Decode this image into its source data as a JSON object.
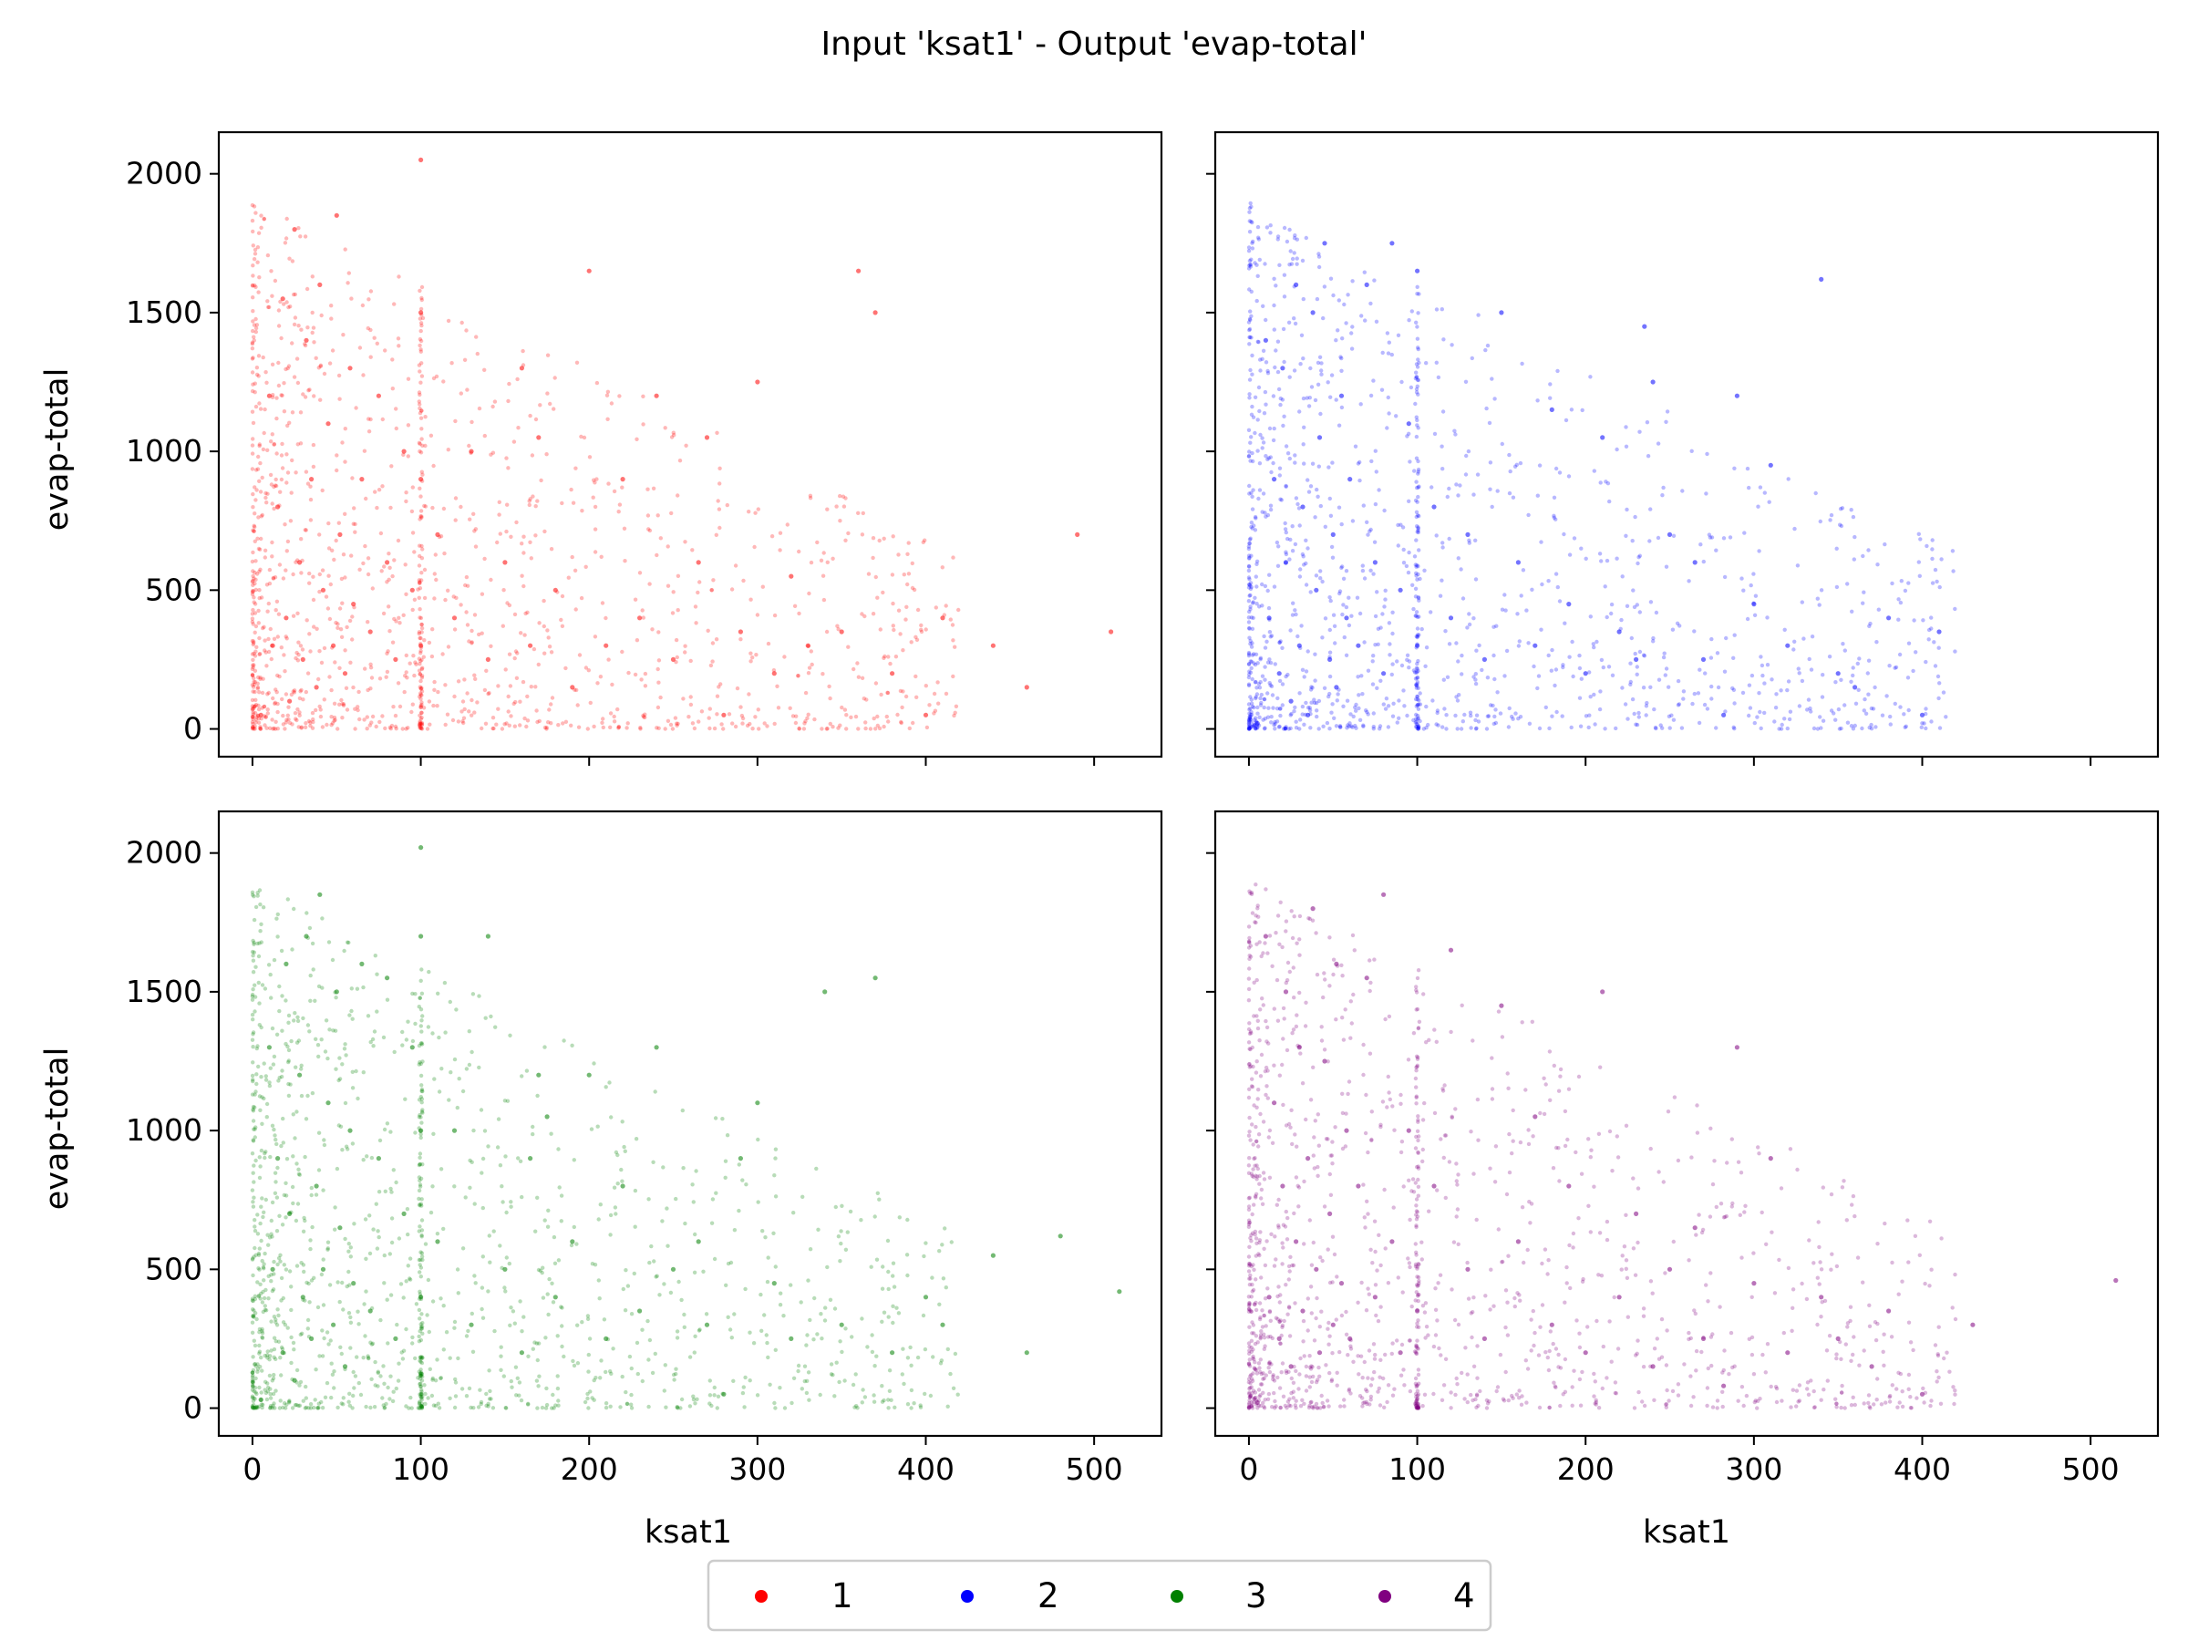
{
  "chart_data": {
    "type": "scatter",
    "title": "Input 'ksat1' - Output 'evap-total'",
    "subtitle": "",
    "xlabel": "ksat1",
    "ylabel": "evap-total",
    "xlim": [
      -20,
      540
    ],
    "ylim": [
      -100,
      2150
    ],
    "xticks": [
      0,
      100,
      200,
      300,
      400,
      500
    ],
    "yticks": [
      0,
      500,
      1000,
      1500,
      2000
    ],
    "grid": false,
    "legend": {
      "placement": "bottom-center",
      "entries": [
        {
          "label": "1",
          "color": "#ff0000"
        },
        {
          "label": "2",
          "color": "#0000ff"
        },
        {
          "label": "3",
          "color": "#008000"
        },
        {
          "label": "4",
          "color": "#800080"
        }
      ]
    },
    "panels": [
      {
        "series": "1",
        "color": "#ff0000",
        "points": [
          [
            5,
            50
          ],
          [
            10,
            1200
          ],
          [
            12,
            300
          ],
          [
            15,
            800
          ],
          [
            18,
            1550
          ],
          [
            20,
            400
          ],
          [
            22,
            100
          ],
          [
            25,
            1800
          ],
          [
            28,
            600
          ],
          [
            30,
            250
          ],
          [
            32,
            1400
          ],
          [
            35,
            900
          ],
          [
            38,
            150
          ],
          [
            40,
            1600
          ],
          [
            42,
            500
          ],
          [
            45,
            1100
          ],
          [
            48,
            300
          ],
          [
            50,
            1850
          ],
          [
            52,
            700
          ],
          [
            55,
            200
          ],
          [
            58,
            1300
          ],
          [
            60,
            450
          ],
          [
            65,
            900
          ],
          [
            70,
            350
          ],
          [
            75,
            1200
          ],
          [
            80,
            600
          ],
          [
            85,
            250
          ],
          [
            90,
            1000
          ],
          [
            95,
            500
          ],
          [
            100,
            2050
          ],
          [
            100,
            1500
          ],
          [
            100,
            900
          ],
          [
            100,
            300
          ],
          [
            110,
            700
          ],
          [
            120,
            400
          ],
          [
            130,
            1000
          ],
          [
            140,
            250
          ],
          [
            150,
            600
          ],
          [
            160,
            1300
          ],
          [
            165,
            300
          ],
          [
            170,
            1050
          ],
          [
            180,
            500
          ],
          [
            190,
            150
          ],
          [
            200,
            1650
          ],
          [
            210,
            300
          ],
          [
            220,
            900
          ],
          [
            230,
            400
          ],
          [
            240,
            1200
          ],
          [
            250,
            250
          ],
          [
            265,
            600
          ],
          [
            270,
            1050
          ],
          [
            280,
            50
          ],
          [
            290,
            350
          ],
          [
            300,
            1250
          ],
          [
            310,
            200
          ],
          [
            320,
            550
          ],
          [
            330,
            300
          ],
          [
            350,
            350
          ],
          [
            360,
            1650
          ],
          [
            370,
            1500
          ],
          [
            380,
            200
          ],
          [
            400,
            50
          ],
          [
            410,
            400
          ],
          [
            440,
            300
          ],
          [
            460,
            150
          ],
          [
            490,
            700
          ],
          [
            510,
            350
          ]
        ]
      },
      {
        "series": "2",
        "color": "#0000ff",
        "points": [
          [
            5,
            20
          ],
          [
            10,
            1400
          ],
          [
            12,
            400
          ],
          [
            15,
            900
          ],
          [
            18,
            200
          ],
          [
            20,
            1300
          ],
          [
            22,
            600
          ],
          [
            25,
            100
          ],
          [
            28,
            1600
          ],
          [
            30,
            300
          ],
          [
            32,
            800
          ],
          [
            35,
            50
          ],
          [
            38,
            1500
          ],
          [
            40,
            500
          ],
          [
            42,
            1050
          ],
          [
            45,
            1750
          ],
          [
            48,
            250
          ],
          [
            50,
            700
          ],
          [
            52,
            150
          ],
          [
            55,
            1200
          ],
          [
            58,
            400
          ],
          [
            60,
            900
          ],
          [
            65,
            300
          ],
          [
            70,
            1600
          ],
          [
            75,
            600
          ],
          [
            80,
            200
          ],
          [
            85,
            1750
          ],
          [
            90,
            500
          ],
          [
            95,
            1100
          ],
          [
            100,
            1650
          ],
          [
            100,
            300
          ],
          [
            110,
            800
          ],
          [
            120,
            400
          ],
          [
            130,
            700
          ],
          [
            140,
            250
          ],
          [
            150,
            1500
          ],
          [
            160,
            600
          ],
          [
            170,
            300
          ],
          [
            180,
            1150
          ],
          [
            190,
            450
          ],
          [
            200,
            200
          ],
          [
            210,
            1050
          ],
          [
            220,
            350
          ],
          [
            230,
            250
          ],
          [
            235,
            1450
          ],
          [
            240,
            1250
          ],
          [
            250,
            700
          ],
          [
            265,
            600
          ],
          [
            270,
            250
          ],
          [
            282,
            50
          ],
          [
            290,
            1200
          ],
          [
            300,
            450
          ],
          [
            310,
            950
          ],
          [
            320,
            300
          ],
          [
            340,
            1620
          ],
          [
            350,
            200
          ],
          [
            360,
            150
          ],
          [
            380,
            400
          ],
          [
            400,
            50
          ],
          [
            410,
            350
          ]
        ]
      },
      {
        "series": "3",
        "color": "#008000",
        "points": [
          [
            5,
            30
          ],
          [
            10,
            1300
          ],
          [
            12,
            500
          ],
          [
            15,
            900
          ],
          [
            18,
            200
          ],
          [
            20,
            1600
          ],
          [
            22,
            700
          ],
          [
            25,
            100
          ],
          [
            28,
            1200
          ],
          [
            30,
            400
          ],
          [
            32,
            1700
          ],
          [
            35,
            250
          ],
          [
            38,
            800
          ],
          [
            40,
            1850
          ],
          [
            42,
            500
          ],
          [
            45,
            1100
          ],
          [
            48,
            300
          ],
          [
            50,
            1500
          ],
          [
            52,
            650
          ],
          [
            55,
            150
          ],
          [
            58,
            1000
          ],
          [
            60,
            450
          ],
          [
            65,
            1600
          ],
          [
            70,
            350
          ],
          [
            75,
            900
          ],
          [
            80,
            1550
          ],
          [
            85,
            250
          ],
          [
            90,
            700
          ],
          [
            95,
            1300
          ],
          [
            100,
            2020
          ],
          [
            100,
            1700
          ],
          [
            100,
            1000
          ],
          [
            100,
            400
          ],
          [
            110,
            600
          ],
          [
            120,
            1000
          ],
          [
            130,
            300
          ],
          [
            140,
            1700
          ],
          [
            150,
            500
          ],
          [
            160,
            200
          ],
          [
            165,
            900
          ],
          [
            170,
            1200
          ],
          [
            175,
            1050
          ],
          [
            180,
            400
          ],
          [
            190,
            600
          ],
          [
            200,
            1200
          ],
          [
            210,
            250
          ],
          [
            220,
            800
          ],
          [
            230,
            350
          ],
          [
            240,
            1300
          ],
          [
            250,
            500
          ],
          [
            265,
            600
          ],
          [
            270,
            300
          ],
          [
            280,
            50
          ],
          [
            290,
            900
          ],
          [
            300,
            1100
          ],
          [
            310,
            450
          ],
          [
            320,
            250
          ],
          [
            340,
            1500
          ],
          [
            350,
            300
          ],
          [
            370,
            1550
          ],
          [
            380,
            200
          ],
          [
            400,
            400
          ],
          [
            410,
            300
          ],
          [
            440,
            550
          ],
          [
            460,
            200
          ],
          [
            480,
            620
          ],
          [
            515,
            420
          ]
        ]
      },
      {
        "series": "4",
        "color": "#800080",
        "points": [
          [
            5,
            20
          ],
          [
            10,
            1700
          ],
          [
            12,
            400
          ],
          [
            15,
            1100
          ],
          [
            18,
            250
          ],
          [
            20,
            800
          ],
          [
            22,
            1500
          ],
          [
            25,
            150
          ],
          [
            28,
            600
          ],
          [
            30,
            1300
          ],
          [
            32,
            350
          ],
          [
            35,
            900
          ],
          [
            38,
            1800
          ],
          [
            40,
            500
          ],
          [
            42,
            200
          ],
          [
            45,
            1250
          ],
          [
            48,
            700
          ],
          [
            50,
            300
          ],
          [
            52,
            1600
          ],
          [
            55,
            450
          ],
          [
            58,
            1000
          ],
          [
            60,
            250
          ],
          [
            65,
            800
          ],
          [
            70,
            1550
          ],
          [
            75,
            400
          ],
          [
            80,
            1850
          ],
          [
            85,
            600
          ],
          [
            90,
            200
          ],
          [
            95,
            1000
          ],
          [
            100,
            350
          ],
          [
            110,
            800
          ],
          [
            120,
            1650
          ],
          [
            130,
            500
          ],
          [
            140,
            250
          ],
          [
            150,
            1450
          ],
          [
            160,
            600
          ],
          [
            170,
            1050
          ],
          [
            180,
            300
          ],
          [
            190,
            800
          ],
          [
            200,
            200
          ],
          [
            210,
            1500
          ],
          [
            220,
            400
          ],
          [
            230,
            700
          ],
          [
            240,
            150
          ],
          [
            250,
            500
          ],
          [
            265,
            650
          ],
          [
            270,
            250
          ],
          [
            282,
            80
          ],
          [
            290,
            1300
          ],
          [
            300,
            450
          ],
          [
            310,
            900
          ],
          [
            320,
            200
          ],
          [
            340,
            400
          ],
          [
            350,
            250
          ],
          [
            370,
            150
          ],
          [
            380,
            350
          ],
          [
            400,
            50
          ],
          [
            430,
            300
          ],
          [
            515,
            460
          ]
        ]
      }
    ]
  }
}
